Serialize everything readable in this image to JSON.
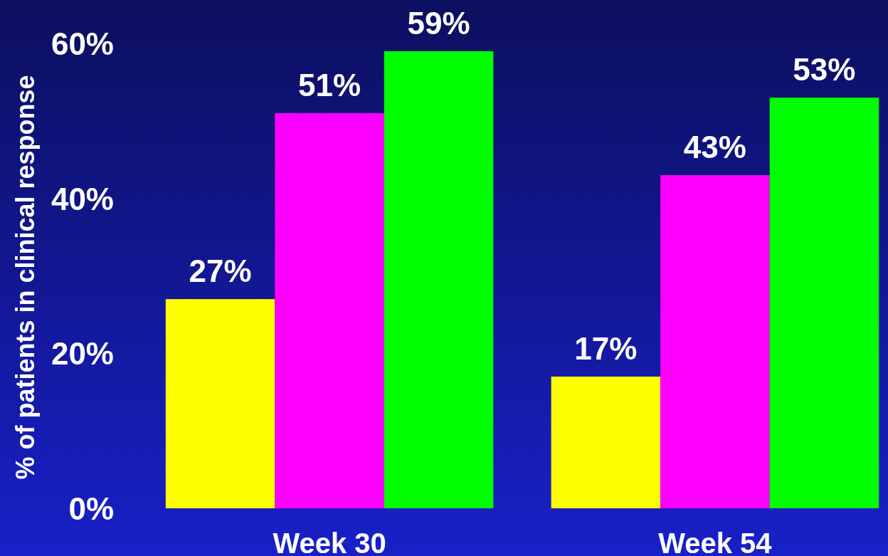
{
  "chart_data": {
    "type": "bar",
    "ylabel": "% of patients in clinical response",
    "categories": [
      "Week 30",
      "Week 54"
    ],
    "series": [
      {
        "color": "#ffff00",
        "values": [
          27,
          17
        ],
        "value_labels": [
          "27%",
          "17%"
        ]
      },
      {
        "color": "#ff00ff",
        "values": [
          51,
          43
        ],
        "value_labels": [
          "51%",
          "43%"
        ]
      },
      {
        "color": "#00ff00",
        "values": [
          59,
          53
        ],
        "value_labels": [
          "59%",
          "53%"
        ]
      }
    ],
    "ylim": [
      0,
      60
    ],
    "yticks": [
      {
        "value": 0,
        "label": "0%"
      },
      {
        "value": 20,
        "label": "20%"
      },
      {
        "value": 40,
        "label": "40%"
      },
      {
        "value": 60,
        "label": "60%"
      }
    ]
  }
}
